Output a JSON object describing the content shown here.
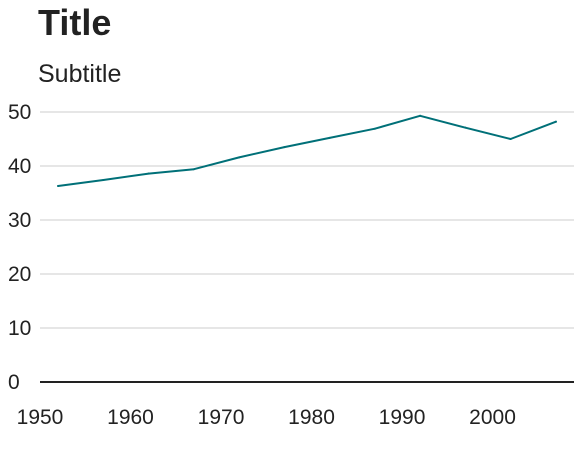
{
  "chart_data": {
    "type": "line",
    "title": "Title",
    "subtitle": "Subtitle",
    "xlabel": "",
    "ylabel": "",
    "xlim": [
      1950,
      2009
    ],
    "ylim": [
      0,
      50
    ],
    "x_ticks": [
      1950,
      1960,
      1970,
      1980,
      1990,
      2000
    ],
    "y_ticks": [
      0,
      10,
      20,
      30,
      40,
      50
    ],
    "grid": true,
    "line_color": "#007078",
    "series": [
      {
        "x": [
          1952,
          1957,
          1962,
          1967,
          1972,
          1977,
          1982,
          1987,
          1992,
          1997,
          2002,
          2007
        ],
        "values": [
          36.3,
          37.4,
          38.6,
          39.4,
          41.6,
          43.5,
          45.2,
          46.9,
          49.3,
          47.1,
          45.0,
          48.2
        ]
      }
    ]
  }
}
